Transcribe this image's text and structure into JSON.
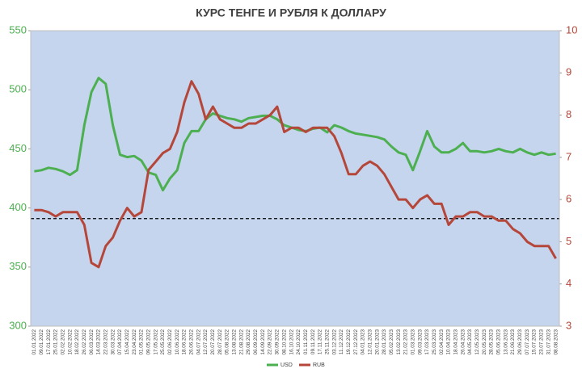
{
  "chart_data": {
    "type": "line",
    "title": "КУРС ТЕНГЕ И РУБЛЯ К ДОЛЛАРУ",
    "categories": [
      "01.01.2022",
      "09.01.2022",
      "17.01.2022",
      "25.01.2022",
      "02.02.2022",
      "10.02.2022",
      "18.02.2022",
      "26.02.2022",
      "06.03.2022",
      "14.03.2022",
      "22.03.2022",
      "30.03.2022",
      "07.04.2022",
      "15.04.2022",
      "23.04.2022",
      "01.05.2022",
      "09.05.2022",
      "17.05.2022",
      "25.05.2022",
      "02.06.2022",
      "10.06.2022",
      "18.06.2022",
      "26.06.2022",
      "04.07.2022",
      "12.07.2022",
      "20.07.2022",
      "28.07.2022",
      "05.08.2022",
      "13.08.2022",
      "21.08.2022",
      "29.08.2022",
      "06.09.2022",
      "14.09.2022",
      "22.09.2022",
      "30.09.2022",
      "08.10.2022",
      "16.10.2022",
      "24.10.2022",
      "01.11.2022",
      "09.11.2022",
      "17.11.2022",
      "25.11.2022",
      "03.12.2022",
      "11.12.2022",
      "19.12.2022",
      "27.12.2022",
      "04.01.2023",
      "12.01.2023",
      "20.01.2023",
      "28.01.2023",
      "05.02.2023",
      "13.02.2023",
      "21.02.2023",
      "01.03.2023",
      "09.03.2023",
      "17.03.2023",
      "25.03.2023",
      "02.04.2023",
      "10.04.2023",
      "18.04.2023",
      "26.04.2023",
      "04.05.2023",
      "12.05.2023",
      "20.05.2023",
      "28.05.2023",
      "05.06.2023",
      "13.06.2023",
      "21.06.2023",
      "29.06.2023",
      "07.07.2023",
      "15.07.2023",
      "23.07.2023",
      "31.07.2023",
      "08.08.2023"
    ],
    "series": [
      {
        "name": "USD",
        "color": "#4caf50",
        "values": [
          431,
          432,
          434,
          433,
          431,
          428,
          432,
          470,
          498,
          510,
          505,
          470,
          445,
          443,
          444,
          440,
          430,
          428,
          415,
          425,
          432,
          455,
          465,
          465,
          475,
          480,
          478,
          476,
          475,
          473,
          476,
          477,
          478,
          478,
          475,
          470,
          468,
          466,
          465,
          467,
          468,
          464,
          470,
          468,
          465,
          463,
          462,
          461,
          460,
          458,
          452,
          447,
          445,
          432,
          448,
          465,
          452,
          447,
          447,
          450,
          455,
          448,
          448,
          447,
          448,
          450,
          448,
          447,
          450,
          447,
          445,
          447,
          445,
          446
        ]
      },
      {
        "name": "RUB",
        "color": "#b5473a",
        "axis": "y2",
        "values": [
          5.75,
          5.75,
          5.7,
          5.6,
          5.7,
          5.7,
          5.7,
          5.4,
          4.5,
          4.4,
          4.9,
          5.1,
          5.5,
          5.8,
          5.6,
          5.7,
          6.7,
          6.9,
          7.1,
          7.2,
          7.6,
          8.3,
          8.8,
          8.5,
          7.9,
          8.2,
          7.9,
          7.8,
          7.7,
          7.7,
          7.8,
          7.8,
          7.9,
          8.0,
          8.2,
          7.6,
          7.7,
          7.7,
          7.6,
          7.7,
          7.7,
          7.7,
          7.5,
          7.1,
          6.6,
          6.6,
          6.8,
          6.9,
          6.8,
          6.6,
          6.3,
          6.0,
          6.0,
          5.8,
          6.0,
          6.1,
          5.9,
          5.9,
          5.4,
          5.6,
          5.6,
          5.7,
          5.7,
          5.6,
          5.6,
          5.5,
          5.5,
          5.3,
          5.2,
          5.0,
          4.9,
          4.9,
          4.9,
          4.6
        ]
      }
    ],
    "ylim": [
      300,
      550
    ],
    "yticks": [
      300,
      350,
      400,
      450,
      500,
      550
    ],
    "y2lim": [
      3,
      10
    ],
    "y2ticks": [
      3,
      4,
      5,
      6,
      7,
      8,
      9,
      10
    ],
    "reference_line": 391,
    "plot_background": "#c6d5ee",
    "legend": "bottom"
  }
}
